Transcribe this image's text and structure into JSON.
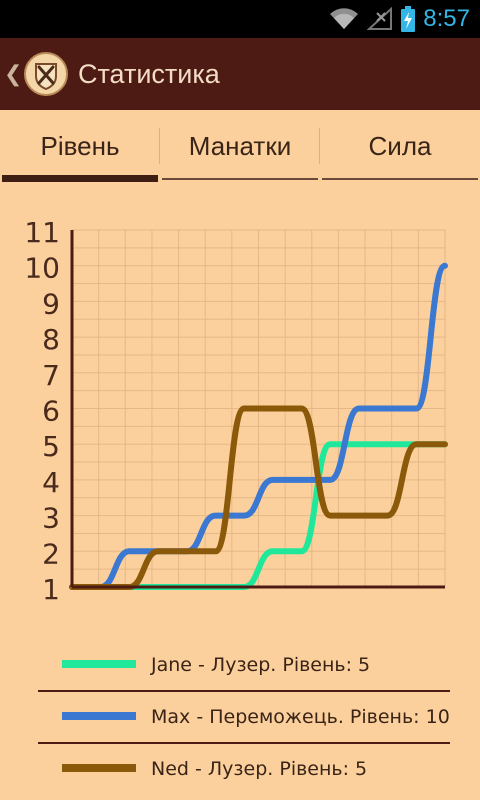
{
  "status": {
    "time": "8:57"
  },
  "actionbar": {
    "back_icon": "chevron-left-icon",
    "app_icon": "crossed-swords-shield-icon",
    "title": "Статистика"
  },
  "tabs": [
    {
      "label": "Рівень",
      "active": true
    },
    {
      "label": "Манатки",
      "active": false
    },
    {
      "label": "Сила",
      "active": false
    }
  ],
  "colors": {
    "background": "#fbd09c",
    "actionbar": "#4d1a14",
    "jane": "#1fe89a",
    "max": "#3a78d2",
    "ned": "#8a5a0a",
    "grid": "#e6b889",
    "axis": "#4d1a14"
  },
  "chart_data": {
    "type": "line",
    "x": [
      1,
      2,
      3,
      4,
      5,
      6,
      7,
      8,
      9,
      10,
      11,
      12,
      13,
      14
    ],
    "ylim": [
      1,
      11
    ],
    "yticks": [
      "1",
      "2",
      "3",
      "4",
      "5",
      "6",
      "7",
      "8",
      "9",
      "10",
      "11"
    ],
    "grid": true,
    "series": [
      {
        "name": "Jane",
        "color": "#1fe89a",
        "values": [
          1,
          1,
          1,
          1,
          1,
          1,
          1,
          2,
          2,
          5,
          5,
          5,
          5,
          5
        ]
      },
      {
        "name": "Max",
        "color": "#3a78d2",
        "values": [
          1,
          1,
          2,
          2,
          2,
          3,
          3,
          4,
          4,
          4,
          6,
          6,
          6,
          10
        ]
      },
      {
        "name": "Ned",
        "color": "#8a5a0a",
        "values": [
          1,
          1,
          1,
          2,
          2,
          2,
          6,
          6,
          6,
          3,
          3,
          3,
          5,
          5
        ]
      }
    ]
  },
  "legend": [
    {
      "label": "Jane - Лузер. Рівень: 5",
      "color": "#1fe89a"
    },
    {
      "label": "Max - Переможець. Рівень: 10",
      "color": "#3a78d2"
    },
    {
      "label": "Ned - Лузер. Рівень: 5",
      "color": "#8a5a0a"
    }
  ]
}
